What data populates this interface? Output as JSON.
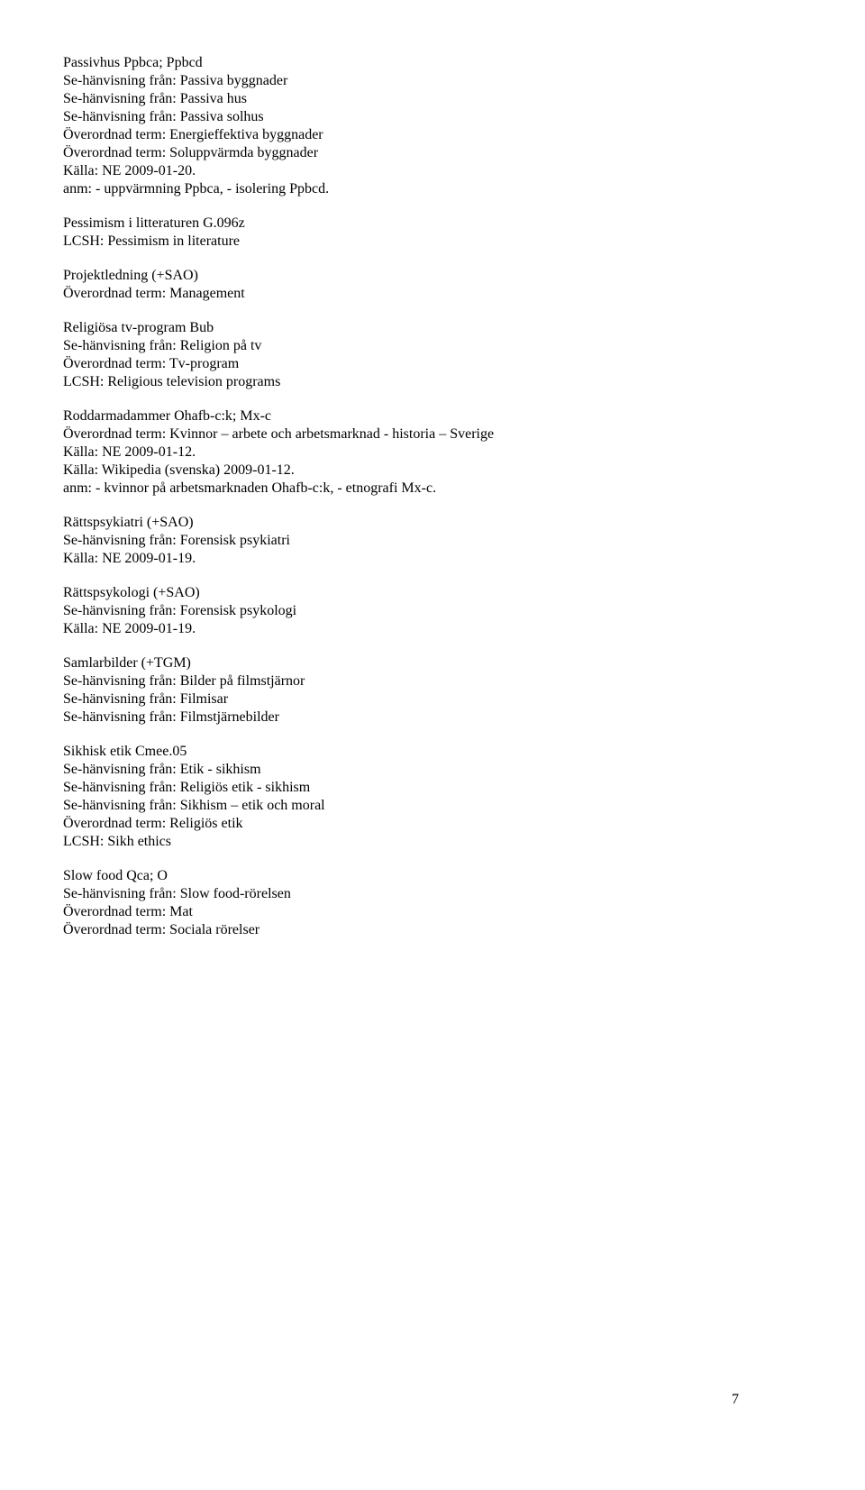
{
  "entries": [
    {
      "lines": [
        "Passivhus Ppbca; Ppbcd",
        "Se-hänvisning från: Passiva byggnader",
        "Se-hänvisning från: Passiva hus",
        "Se-hänvisning från: Passiva solhus",
        "Överordnad term: Energieffektiva byggnader",
        "Överordnad term: Soluppvärmda byggnader",
        "Källa: NE 2009-01-20.",
        "anm: - uppvärmning Ppbca, - isolering Ppbcd."
      ]
    },
    {
      "lines": [
        "Pessimism i litteraturen G.096z",
        "LCSH: Pessimism in literature"
      ]
    },
    {
      "lines": [
        "Projektledning (+SAO)",
        "Överordnad term: Management"
      ]
    },
    {
      "lines": [
        "Religiösa tv-program Bub",
        "Se-hänvisning från: Religion på tv",
        "Överordnad term: Tv-program",
        "LCSH: Religious television programs"
      ]
    },
    {
      "lines": [
        "Roddarmadammer Ohafb-c:k; Mx-c",
        "Överordnad term: Kvinnor – arbete och arbetsmarknad - historia – Sverige",
        "Källa: NE 2009-01-12.",
        "Källa: Wikipedia (svenska) 2009-01-12.",
        "anm: - kvinnor på arbetsmarknaden Ohafb-c:k, - etnografi Mx-c."
      ]
    },
    {
      "lines": [
        "Rättspsykiatri (+SAO)",
        "Se-hänvisning från: Forensisk psykiatri",
        "Källa: NE  2009-01-19."
      ]
    },
    {
      "lines": [
        "Rättspsykologi (+SAO)",
        "Se-hänvisning från: Forensisk psykologi",
        "Källa: NE 2009-01-19."
      ]
    },
    {
      "lines": [
        "Samlarbilder (+TGM)",
        "Se-hänvisning från: Bilder på filmstjärnor",
        "Se-hänvisning från: Filmisar",
        "Se-hänvisning från: Filmstjärnebilder"
      ]
    },
    {
      "lines": [
        "Sikhisk etik Cmee.05",
        "Se-hänvisning från: Etik - sikhism",
        "Se-hänvisning från: Religiös etik - sikhism",
        "Se-hänvisning från: Sikhism – etik och moral",
        "Överordnad term: Religiös etik",
        "LCSH: Sikh ethics"
      ]
    },
    {
      "lines": [
        "Slow food Qca; O",
        "Se-hänvisning från: Slow food-rörelsen",
        "Överordnad term: Mat",
        "Överordnad term: Sociala rörelser"
      ]
    }
  ],
  "page_number": "7"
}
